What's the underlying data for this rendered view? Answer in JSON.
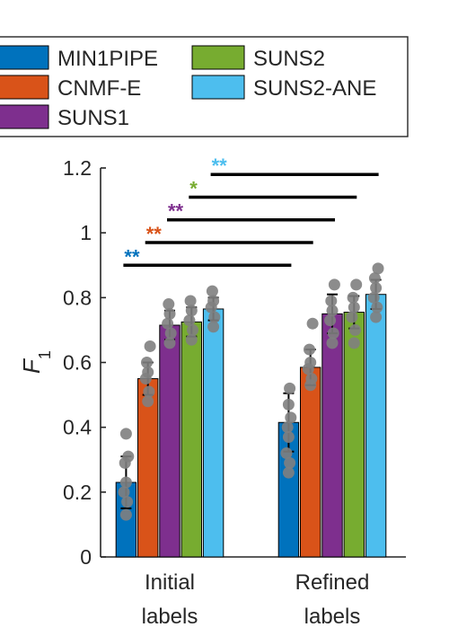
{
  "chart_data": {
    "type": "bar",
    "categories": [
      [
        "Initial",
        "labels"
      ],
      [
        "Refined",
        "labels"
      ]
    ],
    "ylabel": "F",
    "ylabel_subscript": "1",
    "ylim": [
      0,
      1.2
    ],
    "yticks": [
      0,
      0.2,
      0.4,
      0.6,
      0.8,
      1,
      1.2
    ],
    "ytick_labels": [
      "0",
      "0.2",
      "0.4",
      "0.6",
      "0.8",
      "1",
      "1.2"
    ],
    "legend_location": "top, outside plot",
    "series": [
      {
        "name": "MIN1PIPE",
        "color": "#0072BD",
        "values": [
          0.23,
          0.415
        ],
        "error": [
          0.08,
          0.09
        ],
        "points": [
          [
            0.13,
            0.17,
            0.2,
            0.23,
            0.29,
            0.31,
            0.38
          ],
          [
            0.26,
            0.29,
            0.32,
            0.37,
            0.4,
            0.43,
            0.47,
            0.52
          ]
        ]
      },
      {
        "name": "CNMF-E",
        "color": "#D95319",
        "values": [
          0.55,
          0.585
        ],
        "error": [
          0.05,
          0.055
        ],
        "points": [
          [
            0.48,
            0.51,
            0.55,
            0.57,
            0.6,
            0.65
          ],
          [
            0.53,
            0.55,
            0.58,
            0.6,
            0.64,
            0.72
          ]
        ]
      },
      {
        "name": "SUNS1",
        "color": "#7E2F8E",
        "values": [
          0.715,
          0.75
        ],
        "error": [
          0.045,
          0.06
        ],
        "points": [
          [
            0.66,
            0.69,
            0.72,
            0.75,
            0.78
          ],
          [
            0.66,
            0.69,
            0.73,
            0.76,
            0.79,
            0.84
          ]
        ]
      },
      {
        "name": "SUNS2",
        "color": "#77AC30",
        "values": [
          0.725,
          0.755
        ],
        "error": [
          0.045,
          0.05
        ],
        "points": [
          [
            0.67,
            0.7,
            0.73,
            0.76,
            0.79
          ],
          [
            0.66,
            0.7,
            0.74,
            0.77,
            0.8,
            0.84
          ]
        ]
      },
      {
        "name": "SUNS2-ANE",
        "color": "#4DBEEE",
        "values": [
          0.765,
          0.81
        ],
        "error": [
          0.035,
          0.045
        ],
        "points": [
          [
            0.71,
            0.74,
            0.77,
            0.79,
            0.82
          ],
          [
            0.74,
            0.77,
            0.8,
            0.83,
            0.86,
            0.89
          ]
        ]
      }
    ],
    "point_color": "#808080",
    "significance": [
      {
        "label": "**",
        "color": "#0072BD",
        "y": 0.9,
        "from": [
          0,
          0
        ],
        "to": [
          1,
          0
        ]
      },
      {
        "label": "**",
        "color": "#D95319",
        "y": 0.97,
        "from": [
          0,
          1
        ],
        "to": [
          1,
          1
        ]
      },
      {
        "label": "**",
        "color": "#7E2F8E",
        "y": 1.04,
        "from": [
          0,
          2
        ],
        "to": [
          1,
          2
        ]
      },
      {
        "label": "*",
        "color": "#77AC30",
        "y": 1.11,
        "from": [
          0,
          3
        ],
        "to": [
          1,
          3
        ]
      },
      {
        "label": "**",
        "color": "#4DBEEE",
        "y": 1.18,
        "from": [
          0,
          4
        ],
        "to": [
          1,
          4
        ]
      }
    ]
  }
}
